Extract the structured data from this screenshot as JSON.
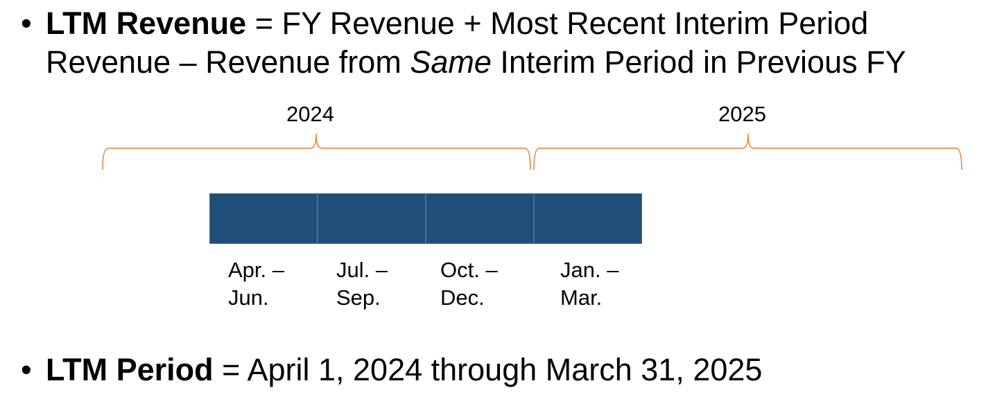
{
  "bullets": [
    {
      "term": "LTM Revenue",
      "line1_rest": " = FY Revenue + Most Recent Interim Period",
      "line2_pre": "Revenue – Revenue from ",
      "line2_italic": "Same",
      "line2_post": " Interim Period in Previous FY"
    },
    {
      "term": "LTM Period",
      "rest": " = April 1, 2024 through March 31, 2025"
    }
  ],
  "years": [
    "2024",
    "2025"
  ],
  "quarters": [
    {
      "line1": "Apr. –",
      "line2": "Jun."
    },
    {
      "line1": "Jul. –",
      "line2": "Sep."
    },
    {
      "line1": "Oct. –",
      "line2": "Dec."
    },
    {
      "line1": "Jan. –",
      "line2": "Mar."
    }
  ],
  "colors": {
    "brace": "#ed7d31",
    "box_fill": "#1f4e79",
    "box_border": "#41719c"
  }
}
